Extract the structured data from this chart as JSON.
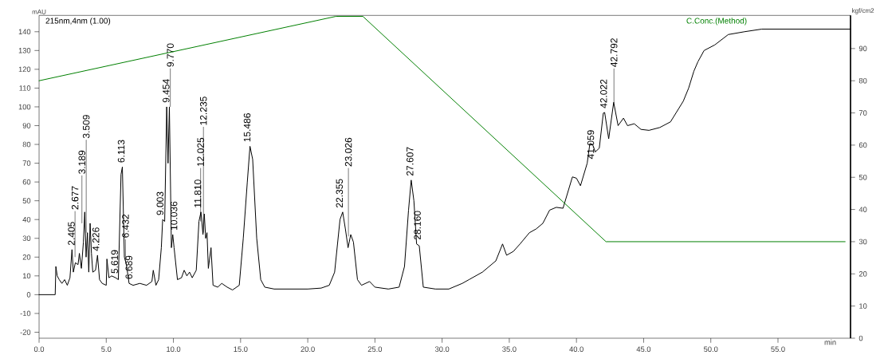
{
  "chart_data": {
    "type": "line",
    "xlabel": "min",
    "ylabel": "mAU",
    "y2label": "kgf/cm2",
    "xlim": [
      0,
      60.4
    ],
    "ylim": [
      -23.2,
      148.7
    ],
    "y2lim": [
      0,
      100.3
    ],
    "xticks": [
      {
        "value": 0,
        "label": "0.0"
      },
      {
        "value": 5,
        "label": "5.0"
      },
      {
        "value": 10,
        "label": "10.0"
      },
      {
        "value": 15,
        "label": "15.0"
      },
      {
        "value": 20,
        "label": "20.0"
      },
      {
        "value": 25,
        "label": "25.0"
      },
      {
        "value": 30,
        "label": "30.0"
      },
      {
        "value": 35,
        "label": "35.0"
      },
      {
        "value": 40,
        "label": "40.0"
      },
      {
        "value": 45,
        "label": "45.0"
      },
      {
        "value": 50,
        "label": "50.0"
      },
      {
        "value": 55,
        "label": "55.0"
      }
    ],
    "yticks": [
      -20,
      -10,
      0,
      10,
      20,
      30,
      40,
      50,
      60,
      70,
      80,
      90,
      100,
      110,
      120,
      130,
      140
    ],
    "y2ticks": [
      0,
      10,
      20,
      30,
      40,
      50,
      60,
      70,
      80,
      90
    ],
    "series": [
      {
        "name": "215nm,4nm (1.00)",
        "color": "#000000",
        "x": [
          0,
          1.2,
          1.25,
          1.35,
          1.5,
          1.7,
          1.9,
          2.1,
          2.3,
          2.45,
          2.55,
          2.7,
          2.9,
          3.0,
          3.15,
          3.3,
          3.4,
          3.5,
          3.6,
          3.7,
          3.8,
          3.9,
          4.0,
          4.2,
          4.35,
          4.5,
          4.7,
          5.0,
          5.05,
          5.2,
          5.4,
          5.7,
          5.9,
          6.1,
          6.2,
          6.35,
          6.5,
          6.7,
          7.0,
          7.5,
          8.0,
          8.4,
          8.5,
          8.7,
          8.9,
          9.1,
          9.2,
          9.35,
          9.5,
          9.6,
          9.7,
          9.85,
          9.95,
          10.05,
          10.3,
          10.6,
          10.8,
          11.0,
          11.2,
          11.4,
          11.7,
          11.9,
          12.05,
          12.2,
          12.3,
          12.4,
          12.5,
          12.6,
          12.8,
          12.95,
          13.3,
          13.6,
          14.0,
          14.4,
          14.9,
          15.2,
          15.5,
          15.7,
          15.9,
          16.2,
          16.5,
          16.8,
          17.5,
          20,
          21,
          21.6,
          22.0,
          22.4,
          22.6,
          22.8,
          23.0,
          23.2,
          23.4,
          23.7,
          24.0,
          24.6,
          25.0,
          26.0,
          26.8,
          27.2,
          27.5,
          27.7,
          27.9,
          28.1,
          28.3,
          28.6,
          29.5,
          30.5,
          31.5,
          32.0,
          33.0,
          34.0,
          34.5,
          34.8,
          35.3,
          35.8,
          36.5,
          37.0,
          37.5,
          38.0,
          38.5,
          39.0,
          39.7,
          40.0,
          40.3,
          40.8,
          41.0,
          41.2,
          41.4,
          41.7,
          42.0,
          42.1,
          42.4,
          42.77,
          43.1,
          43.5,
          43.8,
          44.3,
          44.8,
          45.4,
          46.2,
          47.0,
          47.95,
          48.35,
          48.74,
          49.04,
          49.5,
          50.3,
          51.3,
          52.5,
          53.8,
          60.4
        ],
        "values": [
          0,
          0,
          15,
          10,
          8,
          6,
          8,
          5,
          9,
          24,
          12,
          17,
          16,
          22,
          14,
          28,
          44,
          20,
          33,
          12,
          38,
          22,
          12,
          13,
          21,
          8,
          6,
          5,
          19,
          9,
          10,
          9,
          8,
          64,
          68,
          20,
          16,
          6,
          5,
          6,
          5,
          7,
          13,
          5,
          8,
          25,
          40,
          39,
          100,
          70,
          100,
          25,
          32,
          25,
          8,
          9,
          13,
          10,
          12,
          9,
          13,
          39,
          44,
          32,
          43,
          30,
          33,
          14,
          25,
          5,
          4,
          6,
          4,
          2.5,
          5,
          30,
          60,
          79,
          72,
          30,
          8,
          4,
          3,
          3,
          3.5,
          5,
          12,
          40,
          44,
          35,
          25,
          32,
          28,
          8,
          5,
          7,
          4,
          3,
          4,
          15,
          45,
          61,
          50,
          27,
          26,
          4,
          3,
          3,
          6,
          8,
          12,
          18,
          27,
          21,
          23,
          27,
          33,
          35,
          38,
          45,
          46.5,
          46,
          62.7,
          62,
          58,
          70,
          80.5,
          80,
          76,
          78,
          96.7,
          97,
          83,
          102.4,
          90,
          94,
          90,
          91,
          88,
          87.5,
          89,
          92,
          103,
          110,
          119,
          124,
          130,
          133,
          138.5,
          140,
          141.4,
          141.4
        ]
      },
      {
        "name": "C.Conc.(Method)",
        "color": "#008000",
        "axis": "y2",
        "x": [
          0,
          22.1,
          24.1,
          42.2,
          60.0
        ],
        "values": [
          80,
          100,
          100,
          30,
          30
        ]
      }
    ],
    "annotations": [
      {
        "text": "2.405",
        "x": 2.405,
        "y": 24
      },
      {
        "text": "2.677",
        "x": 2.677,
        "y": 20
      },
      {
        "text": "3.189",
        "x": 3.189,
        "y": 38
      },
      {
        "text": "3.509",
        "x": 3.509,
        "y": 33
      },
      {
        "text": "4.226",
        "x": 4.226,
        "y": 21
      },
      {
        "text": "5.619",
        "x": 5.619,
        "y": 9
      },
      {
        "text": "6.113",
        "x": 6.113,
        "y": 68
      },
      {
        "text": "6.432",
        "x": 6.432,
        "y": 18
      },
      {
        "text": "6.689",
        "x": 6.689,
        "y": 6
      },
      {
        "text": "9.003",
        "x": 9.003,
        "y": 40
      },
      {
        "text": "9.454",
        "x": 9.454,
        "y": 100
      },
      {
        "text": "9.770",
        "x": 9.77,
        "y": 100
      },
      {
        "text": "10.036",
        "x": 10.036,
        "y": 32
      },
      {
        "text": "11.810",
        "x": 11.81,
        "y": 44
      },
      {
        "text": "12.025",
        "x": 12.025,
        "y": 39
      },
      {
        "text": "12.235",
        "x": 12.235,
        "y": 33
      },
      {
        "text": "15.486",
        "x": 15.486,
        "y": 79
      },
      {
        "text": "22.355",
        "x": 22.355,
        "y": 44
      },
      {
        "text": "23.026",
        "x": 23.026,
        "y": 31
      },
      {
        "text": "27.607",
        "x": 27.607,
        "y": 61
      },
      {
        "text": "28.160",
        "x": 28.16,
        "y": 27
      },
      {
        "text": "41.059",
        "x": 41.059,
        "y": 70
      },
      {
        "text": "42.022",
        "x": 42.022,
        "y": 97
      },
      {
        "text": "42.792",
        "x": 42.792,
        "y": 102
      }
    ]
  }
}
